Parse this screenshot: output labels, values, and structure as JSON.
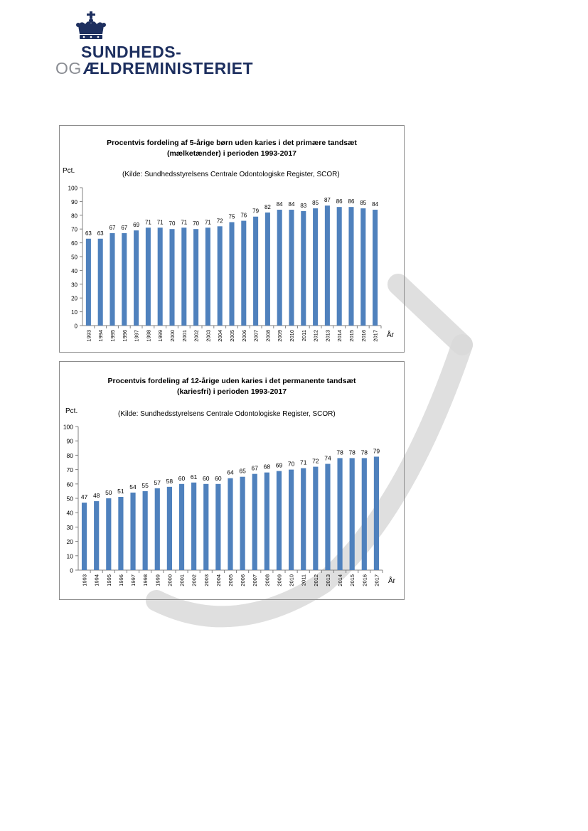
{
  "header": {
    "logo_line1": "SUNDHEDS-",
    "logo_prefix": "OG",
    "logo_line2": "ÆLDREMINISTERIET",
    "brand_color": "#1d2f5f"
  },
  "chart_data": [
    {
      "type": "bar",
      "title": "Procentvis fordeling af 5-årige børn uden karies i det primære tandsæt",
      "subtitle": "(mælketænder) i perioden 1993-2017",
      "source": "(Kilde: Sundhedsstyrelsens Centrale Odontologiske Register, SCOR)",
      "ylabel": "Pct.",
      "xlabel": "År",
      "ylim": [
        0,
        100
      ],
      "yticks": [
        0,
        10,
        20,
        30,
        40,
        50,
        60,
        70,
        80,
        90,
        100
      ],
      "categories": [
        "1993",
        "1994",
        "1995",
        "1996",
        "1997",
        "1998",
        "1999",
        "2000",
        "2001",
        "2002",
        "2003",
        "2004",
        "2005",
        "2006",
        "2007",
        "2008",
        "2009",
        "2010",
        "2011",
        "2012",
        "2013",
        "2014",
        "2015",
        "2016",
        "2017"
      ],
      "values": [
        63,
        63,
        67,
        67,
        69,
        71,
        71,
        70,
        71,
        70,
        71,
        72,
        75,
        76,
        79,
        82,
        84,
        84,
        83,
        85,
        87,
        86,
        86,
        85,
        84
      ],
      "bar_color": "#4f81bd",
      "grid": false,
      "legend": "none"
    },
    {
      "type": "bar",
      "title": "Procentvis fordeling af 12-årige uden karies i det permanente tandsæt",
      "subtitle": "(kariesfri) i perioden 1993-2017",
      "source": "(Kilde: Sundhedsstyrelsens Centrale Odontologiske Register, SCOR)",
      "ylabel": "Pct.",
      "xlabel": "År",
      "ylim": [
        0,
        100
      ],
      "yticks": [
        0,
        10,
        20,
        30,
        40,
        50,
        60,
        70,
        80,
        90,
        100
      ],
      "categories": [
        "1993",
        "1994",
        "1995",
        "1996",
        "1997",
        "1998",
        "1999",
        "2000",
        "2001",
        "2002",
        "2003",
        "2004",
        "2005",
        "2006",
        "2007",
        "2008",
        "2009",
        "2010",
        "2011",
        "2012",
        "2013",
        "2014",
        "2015",
        "2016",
        "2017"
      ],
      "values": [
        47,
        48,
        50,
        51,
        54,
        55,
        57,
        58,
        60,
        61,
        60,
        60,
        64,
        65,
        67,
        68,
        69,
        70,
        71,
        72,
        74,
        78,
        78,
        78,
        79
      ],
      "bar_color": "#4f81bd",
      "grid": false,
      "legend": "none"
    }
  ]
}
